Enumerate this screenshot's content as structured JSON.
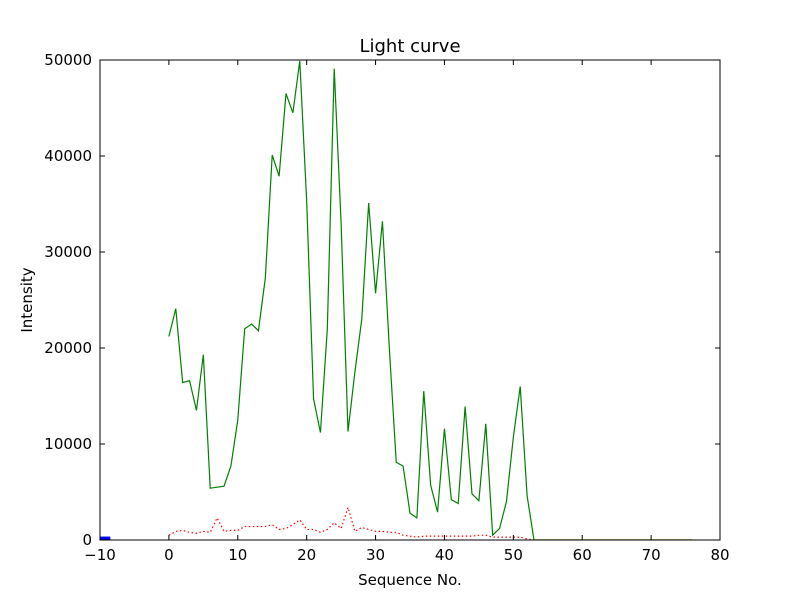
{
  "chart_data": {
    "type": "line",
    "title": "Light curve",
    "xlabel": "Sequence No.",
    "ylabel": "Intensity",
    "xlim": [
      -10,
      80
    ],
    "ylim": [
      0,
      50000
    ],
    "xticks": [
      -10,
      0,
      10,
      20,
      30,
      40,
      50,
      60,
      70,
      80
    ],
    "yticks": [
      0,
      10000,
      20000,
      30000,
      40000,
      50000
    ],
    "xtick_labels": [
      "−10",
      "0",
      "10",
      "20",
      "30",
      "40",
      "50",
      "60",
      "70",
      "80"
    ],
    "ytick_labels": [
      "0",
      "10000",
      "20000",
      "30000",
      "40000",
      "50000"
    ],
    "grid": false,
    "legend": "none",
    "series": [
      {
        "color": "#008000",
        "style": "solid",
        "x": [
          0,
          1,
          2,
          3,
          4,
          5,
          6,
          7,
          8,
          9,
          10,
          11,
          12,
          13,
          14,
          15,
          16,
          17,
          18,
          19,
          20,
          21,
          22,
          23,
          24,
          25,
          26,
          27,
          28,
          29,
          30,
          31,
          32,
          33,
          34,
          35,
          36,
          37,
          38,
          39,
          40,
          41,
          42,
          43,
          44,
          45,
          46,
          47,
          48,
          49,
          50,
          51,
          52,
          53,
          54,
          55,
          56,
          57,
          58,
          59,
          60,
          61,
          62,
          63,
          64,
          65,
          66,
          67,
          68,
          69,
          70,
          71,
          72,
          73,
          74,
          75,
          76
        ],
        "y": [
          21200,
          24100,
          16400,
          16600,
          13500,
          19300,
          5400,
          5500,
          5600,
          7700,
          12500,
          22000,
          22500,
          21800,
          27300,
          40100,
          37900,
          46500,
          44500,
          49900,
          35300,
          14700,
          11200,
          22000,
          49100,
          33000,
          11300,
          17500,
          23000,
          35100,
          25700,
          33200,
          20000,
          8100,
          7700,
          2800,
          2300,
          15500,
          5700,
          2900,
          11600,
          4200,
          3800,
          13900,
          4800,
          4100,
          12100,
          500,
          1200,
          4000,
          10700,
          16000,
          4600,
          0,
          0,
          0,
          0,
          0,
          0,
          0,
          0,
          0,
          0,
          0,
          0,
          0,
          0,
          0,
          0,
          0,
          0,
          0,
          0,
          0,
          0,
          0,
          0
        ]
      },
      {
        "color": "#ff0000",
        "style": "dotted",
        "x": [
          0,
          1,
          2,
          3,
          4,
          5,
          6,
          7,
          8,
          9,
          10,
          11,
          12,
          13,
          14,
          15,
          16,
          17,
          18,
          19,
          20,
          21,
          22,
          23,
          24,
          25,
          26,
          27,
          28,
          29,
          30,
          31,
          32,
          33,
          34,
          35,
          36,
          37,
          38,
          39,
          40,
          41,
          42,
          43,
          44,
          45,
          46,
          47,
          48,
          49,
          50,
          51,
          52,
          53,
          54,
          55,
          56,
          57,
          58,
          59,
          60,
          61,
          62,
          63,
          64,
          65,
          66,
          67,
          68,
          69,
          70,
          71,
          72,
          73,
          74,
          75,
          76
        ],
        "y": [
          500,
          900,
          1000,
          800,
          700,
          900,
          800,
          2300,
          900,
          1000,
          1000,
          1400,
          1400,
          1400,
          1400,
          1600,
          1100,
          1200,
          1600,
          2100,
          1100,
          1100,
          800,
          1100,
          1800,
          1200,
          3400,
          900,
          1300,
          1100,
          900,
          900,
          800,
          800,
          500,
          400,
          300,
          400,
          400,
          400,
          400,
          400,
          400,
          400,
          400,
          500,
          500,
          300,
          300,
          300,
          300,
          300,
          100,
          0,
          0,
          0,
          0,
          0,
          0,
          0,
          0,
          0,
          0,
          0,
          0,
          0,
          0,
          0,
          0,
          0,
          0,
          0,
          0,
          0,
          0,
          0,
          0
        ]
      },
      {
        "color": "#0000ff",
        "style": "solid",
        "x": [
          -10,
          -9.5,
          -9,
          -8.5
        ],
        "y": [
          200,
          200,
          200,
          200
        ]
      },
      {
        "color": "#bfbf00",
        "style": "solid",
        "x": [
          53,
          60,
          70,
          76
        ],
        "y": [
          0,
          0,
          0,
          0
        ]
      }
    ]
  }
}
